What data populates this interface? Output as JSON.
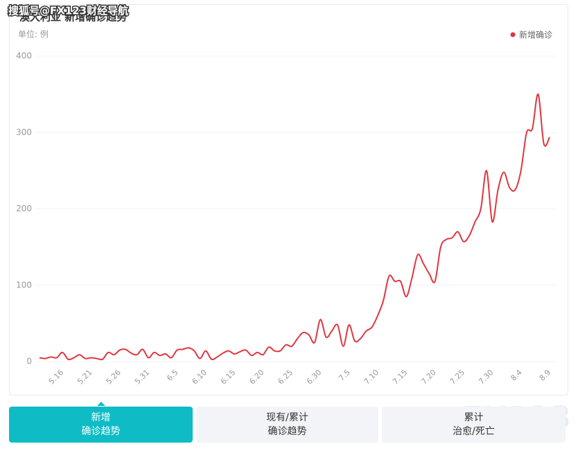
{
  "watermark": "搜狐号@FX123财经导航",
  "chart_data": {
    "type": "line",
    "title": "澳大利亚 新增确诊趋势",
    "subtitle": "单位: 例",
    "categories": [
      null,
      null,
      null,
      null,
      "5.16",
      null,
      null,
      null,
      null,
      "5.21",
      null,
      null,
      null,
      null,
      "5.26",
      null,
      null,
      null,
      null,
      "5.31",
      null,
      null,
      null,
      null,
      "6.5",
      null,
      null,
      null,
      null,
      "6.10",
      null,
      null,
      null,
      null,
      "6.15",
      null,
      null,
      null,
      null,
      "6.20",
      null,
      null,
      null,
      null,
      "6.25",
      null,
      null,
      null,
      null,
      "6.30",
      null,
      null,
      null,
      null,
      "7.5",
      null,
      null,
      null,
      null,
      "7.10",
      null,
      null,
      null,
      null,
      "7.15",
      null,
      null,
      null,
      null,
      "7.20",
      null,
      null,
      null,
      null,
      "7.25",
      null,
      null,
      null,
      null,
      "7.30",
      null,
      null,
      null,
      null,
      "8.4",
      null,
      null,
      null,
      null,
      "8.9"
    ],
    "series": [
      {
        "name": "新增确诊",
        "color": "#e0353f",
        "values": [
          5,
          4,
          6,
          5,
          12,
          3,
          5,
          9,
          4,
          5,
          4,
          3,
          12,
          9,
          15,
          16,
          11,
          9,
          16,
          5,
          12,
          8,
          10,
          5,
          15,
          16,
          18,
          14,
          4,
          14,
          3,
          6,
          11,
          14,
          10,
          13,
          15,
          8,
          12,
          9,
          19,
          14,
          14,
          22,
          20,
          30,
          38,
          35,
          25,
          55,
          32,
          40,
          48,
          20,
          48,
          27,
          30,
          40,
          45,
          60,
          80,
          112,
          105,
          105,
          85,
          110,
          140,
          128,
          115,
          105,
          150,
          160,
          162,
          170,
          157,
          165,
          183,
          200,
          250,
          183,
          225,
          248,
          228,
          225,
          250,
          300,
          305,
          350,
          285,
          294
        ]
      }
    ],
    "ylim": [
      0,
      400
    ],
    "yticks": [
      0,
      100,
      200,
      300,
      400
    ],
    "grid": true,
    "legend": "top-right"
  },
  "tabs": [
    {
      "lines": [
        "新增",
        "确诊趋势"
      ]
    },
    {
      "lines": [
        "现有/累计",
        "确诊趋势"
      ]
    },
    {
      "lines": [
        "累计",
        "治愈/死亡"
      ]
    }
  ],
  "logo": "FX123"
}
